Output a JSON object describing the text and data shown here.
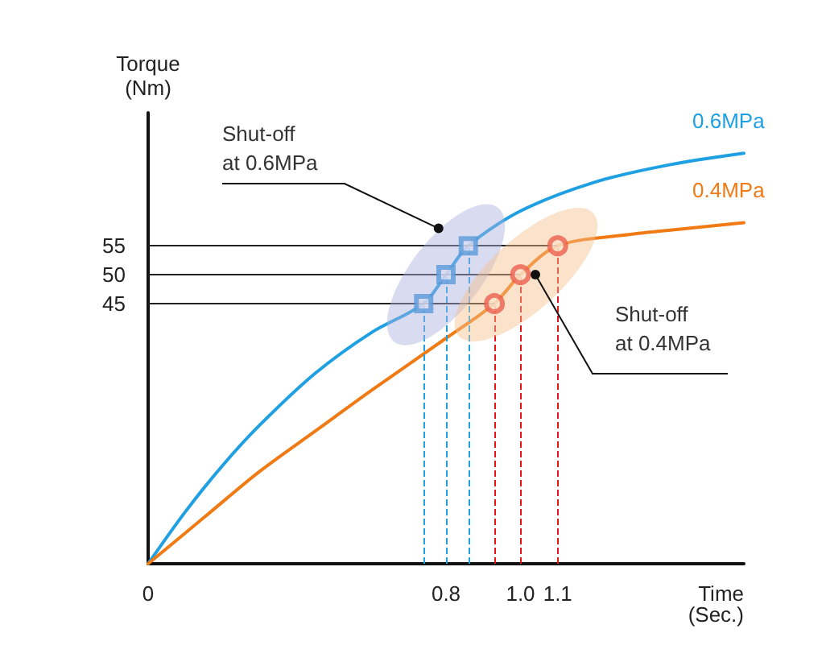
{
  "chart_data": {
    "type": "line",
    "xlabel": "Time (Sec.)",
    "ylabel": "Torque (Nm)",
    "xlim": [
      0,
      1.6
    ],
    "ylim": [
      0,
      78
    ],
    "xticks": [
      0,
      0.8,
      {
        "value": 1.0,
        "label": "1.0"
      },
      1.1
    ],
    "yticks": [
      45,
      50,
      55
    ],
    "grid": false,
    "legend": false,
    "marker": "none",
    "line_style": "solid",
    "series": [
      {
        "name": "0.6MPa",
        "color": "#1ea0e2",
        "x": [
          0,
          0.1,
          0.2,
          0.3,
          0.45,
          0.6,
          0.74,
          0.8,
          0.86,
          1.0,
          1.2,
          1.4,
          1.6
        ],
        "values": [
          0,
          9,
          17,
          24,
          33,
          40,
          45,
          50,
          55,
          61,
          66,
          69,
          71
        ]
      },
      {
        "name": "0.4MPa",
        "color": "#f07a14",
        "x": [
          0,
          0.15,
          0.3,
          0.45,
          0.6,
          0.8,
          0.93,
          1.0,
          1.1,
          1.3,
          1.45,
          1.6
        ],
        "values": [
          0,
          8,
          16,
          23,
          30,
          39,
          45,
          50,
          55,
          57,
          58,
          59
        ]
      },
      {
        "type": "scatter",
        "marker": "square",
        "color": "#1a8ad4",
        "x": [
          0.74,
          0.8,
          0.86
        ],
        "values": [
          45,
          50,
          55
        ]
      },
      {
        "type": "scatter",
        "marker": "circle",
        "color": "#e3141c",
        "x": [
          0.93,
          1.0,
          1.1
        ],
        "values": [
          45,
          50,
          55
        ]
      }
    ],
    "ref_lines": [
      {
        "axis": "y",
        "value": 45,
        "color": "#222222"
      },
      {
        "axis": "y",
        "value": 50,
        "color": "#222222"
      },
      {
        "axis": "y",
        "value": 55,
        "color": "#222222"
      },
      {
        "axis": "x",
        "value": 0.74,
        "color": "#1ea0e2",
        "line_style": "dashed"
      },
      {
        "axis": "x",
        "value": 0.8,
        "color": "#1ea0e2",
        "line_style": "dashed"
      },
      {
        "axis": "x",
        "value": 0.86,
        "color": "#1ea0e2",
        "line_style": "dashed"
      },
      {
        "axis": "x",
        "value": 0.93,
        "color": "#e3141c",
        "line_style": "dashed"
      },
      {
        "axis": "x",
        "value": 1.0,
        "color": "#e3141c",
        "line_style": "dashed"
      },
      {
        "axis": "x",
        "value": 1.1,
        "color": "#e3141c",
        "line_style": "dashed"
      }
    ],
    "annotations": [
      {
        "text": "Shut-off at 0.6MPa",
        "x": 0.78,
        "y": 58
      },
      {
        "text": "Shut-off at 0.4MPa",
        "x": 1.04,
        "y": 50
      }
    ]
  }
}
